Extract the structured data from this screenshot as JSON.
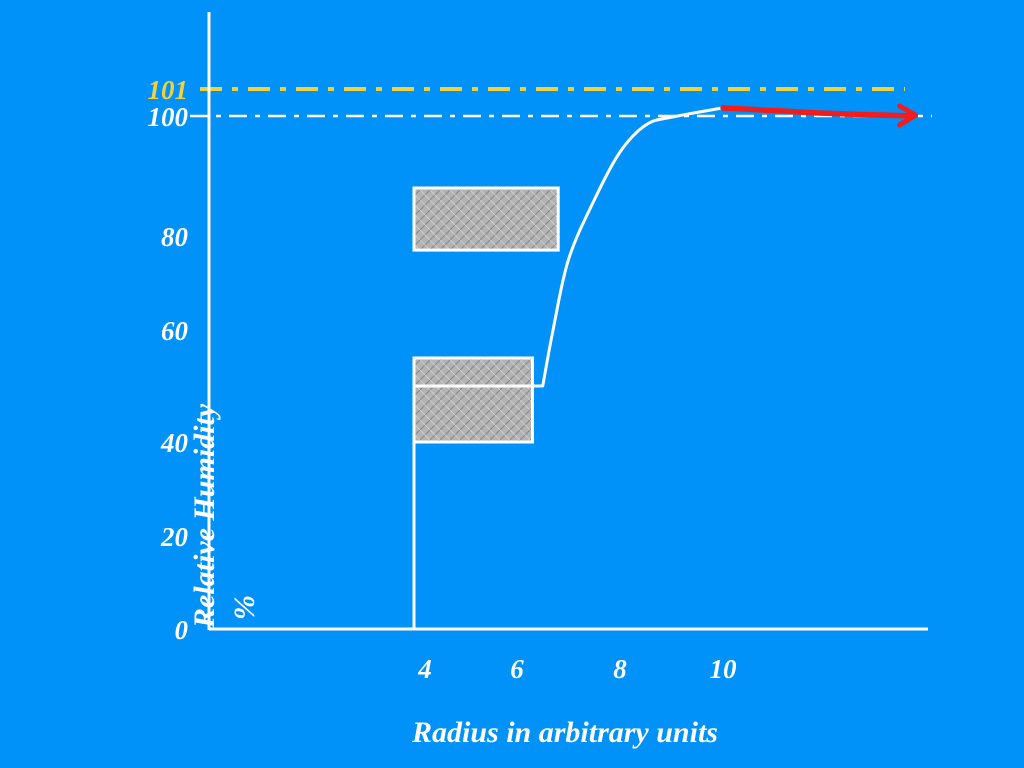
{
  "chart_data": {
    "type": "line",
    "title": "",
    "xlabel": "Radius in arbitrary units",
    "ylabel": "Relative Humidity",
    "ylabel_unit": "%",
    "x_ticks": [
      "4",
      "6",
      "8",
      "10"
    ],
    "y_ticks": [
      {
        "value": 0,
        "label": "0"
      },
      {
        "value": 20,
        "label": "20"
      },
      {
        "value": 40,
        "label": "40"
      },
      {
        "value": 60,
        "label": "60"
      },
      {
        "value": 80,
        "label": "80"
      },
      {
        "value": 100,
        "label": "100"
      },
      {
        "value": 101,
        "label": "101",
        "highlight": true
      }
    ],
    "xlim": [
      0,
      13.7
    ],
    "grid": false,
    "reference_lines": [
      {
        "y": 101,
        "style": "dash-dot",
        "color": "#F2D23A"
      },
      {
        "y": 100,
        "style": "dash-dot",
        "color": "#FFFFFF"
      }
    ],
    "series": [
      {
        "color": "#FFFFFF",
        "points": [
          [
            4,
            0
          ],
          [
            4,
            50
          ],
          [
            6.5,
            50
          ],
          [
            6.7,
            60
          ],
          [
            7.0,
            75
          ],
          [
            7.5,
            86
          ],
          [
            8.0,
            94
          ],
          [
            8.5,
            98.5
          ],
          [
            9.0,
            99.8
          ],
          [
            10,
            100.3
          ]
        ]
      },
      {
        "color": "#F21C1C",
        "arrow": true,
        "points": [
          [
            10,
            100.3
          ],
          [
            11,
            100.2
          ],
          [
            12,
            100.1
          ],
          [
            13.7,
            100.0
          ]
        ]
      }
    ],
    "shaded_regions": [
      {
        "x": [
          4,
          6.8
        ],
        "y": [
          77,
          88
        ]
      },
      {
        "x": [
          4,
          6.3
        ],
        "y": [
          40,
          55
        ]
      }
    ],
    "colors": {
      "background": "#0091F9",
      "axis": "#FFFFFF",
      "fill": "#B3B3B3"
    }
  }
}
